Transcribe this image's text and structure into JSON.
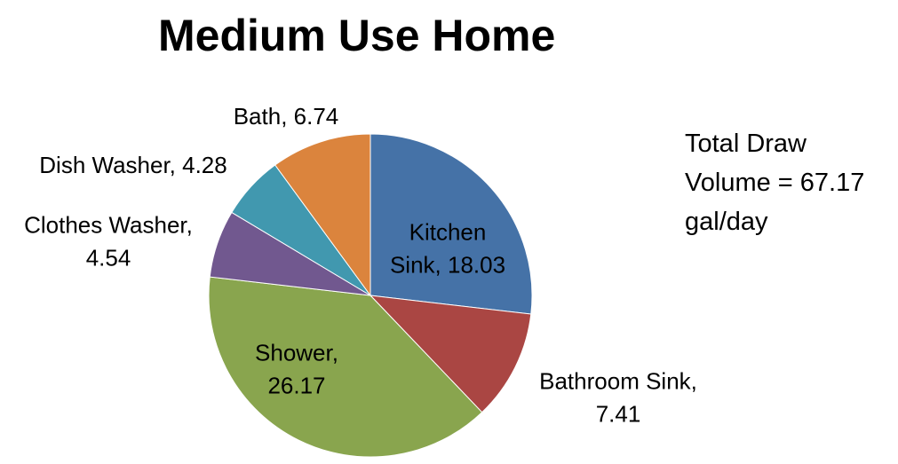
{
  "chart_data": {
    "type": "pie",
    "title": "Medium Use Home",
    "slices": [
      {
        "label": "Kitchen Sink",
        "value": 18.03,
        "color": "#4572A7",
        "label_lines": [
          "Kitchen",
          "Sink, 18.03"
        ],
        "label_inside": true
      },
      {
        "label": "Bathroom Sink",
        "value": 7.41,
        "color": "#AA4643",
        "label_lines": [
          "Bathroom Sink,",
          "7.41"
        ],
        "label_inside": false
      },
      {
        "label": "Shower",
        "value": 26.17,
        "color": "#89A54E",
        "label_lines": [
          "Shower,",
          "26.17"
        ],
        "label_inside": true
      },
      {
        "label": "Clothes Washer",
        "value": 4.54,
        "color": "#71588F",
        "label_lines": [
          "Clothes Washer,",
          "4.54"
        ],
        "label_inside": false
      },
      {
        "label": "Dish Washer",
        "value": 4.28,
        "color": "#4198AF",
        "label_lines": [
          "Dish Washer, 4.28"
        ],
        "label_inside": false
      },
      {
        "label": "Bath",
        "value": 6.74,
        "color": "#DB843D",
        "label_lines": [
          "Bath, 6.74"
        ],
        "label_inside": false
      }
    ],
    "start_angle": "12 o'clock",
    "direction": "clockwise",
    "legend": "none"
  },
  "annotation": {
    "lines": [
      "Total Draw",
      "Volume = 67.17",
      "gal/day"
    ]
  }
}
